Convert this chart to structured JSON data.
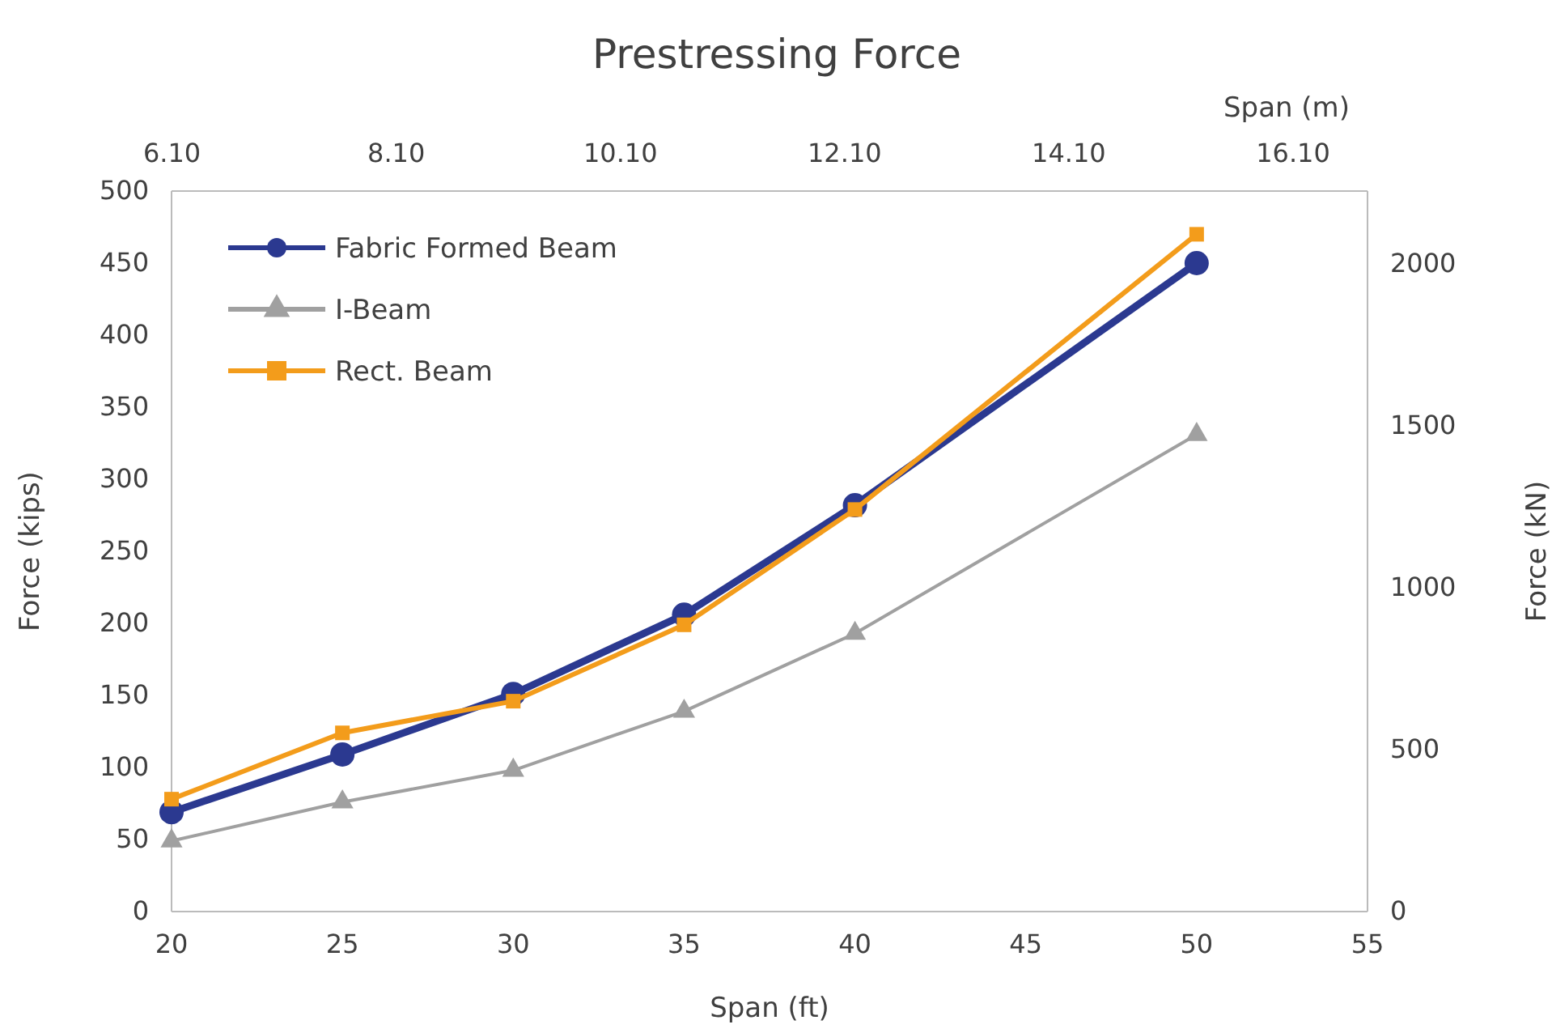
{
  "chart_data": {
    "type": "line",
    "title": "Prestressing Force",
    "xlabel": "Span (ft)",
    "ylabel": "Force (kips)",
    "y2label": "Force (kN)",
    "x2label": "Span (m)",
    "xlim": [
      20,
      55
    ],
    "xticks": [
      20,
      25,
      30,
      35,
      40,
      45,
      50,
      55
    ],
    "ylim": [
      0,
      500
    ],
    "yticks": [
      0,
      50,
      100,
      150,
      200,
      250,
      300,
      350,
      400,
      450,
      500
    ],
    "y2lim": [
      0,
      2224.1
    ],
    "y2ticks": [
      0,
      500,
      1000,
      1500,
      2000
    ],
    "x2lim": [
      6.096,
      16.764
    ],
    "x2ticks": [
      {
        "value": 6.1,
        "label": "6.10"
      },
      {
        "value": 8.1,
        "label": "8.10"
      },
      {
        "value": 10.1,
        "label": "10.10"
      },
      {
        "value": 12.1,
        "label": "12.10"
      },
      {
        "value": 14.1,
        "label": "14.10"
      },
      {
        "value": 16.1,
        "label": "16.10"
      }
    ],
    "x": [
      20,
      25,
      30,
      35,
      40,
      50
    ],
    "grid": false,
    "legend": "top left",
    "line_style": "solid",
    "series": [
      {
        "name": "Fabric Formed Beam",
        "color": "#2b3990",
        "marker": "circle",
        "values": [
          69,
          109,
          151,
          206,
          282,
          450
        ]
      },
      {
        "name": "I-Beam",
        "color": "#a0a0a0",
        "marker": "triangle",
        "values": [
          49,
          76,
          98,
          139,
          193,
          331
        ]
      },
      {
        "name": "Rect. Beam",
        "color": "#f39c1b",
        "marker": "square",
        "values": [
          78,
          124,
          146,
          199,
          279,
          470
        ]
      }
    ]
  }
}
